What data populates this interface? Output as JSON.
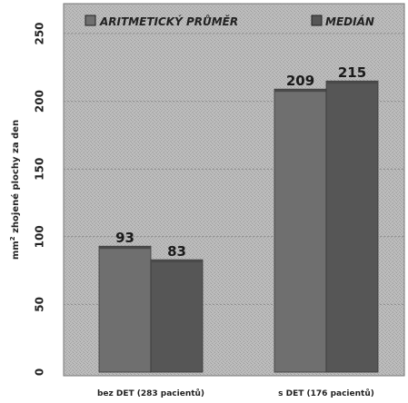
{
  "chart_data": {
    "type": "bar",
    "title": "",
    "ylabel_parts": {
      "pre": "mm",
      "sup": "2",
      "post": " zhojené plochy za den"
    },
    "ylim": [
      0,
      250
    ],
    "yticks": [
      "0",
      "50",
      "100",
      "150",
      "200",
      "250"
    ],
    "ytick_values": [
      0,
      50,
      100,
      150,
      200,
      250
    ],
    "categories": [
      "bez DET (283 pacientů)",
      "s DET (176 pacientů)"
    ],
    "series": [
      {
        "name": "ARITMETICKÝ PRŮMĚR",
        "values": [
          93,
          209
        ],
        "labels": [
          "93",
          "209"
        ],
        "color": "#6f6f6f"
      },
      {
        "name": "MEDIÁN",
        "values": [
          83,
          215
        ],
        "labels": [
          "83",
          "215"
        ],
        "color": "#565656"
      }
    ],
    "legend_position": "top",
    "grid": true
  }
}
